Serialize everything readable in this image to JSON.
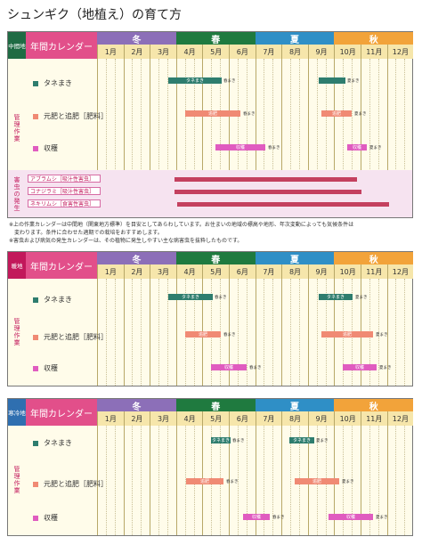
{
  "title": "シュンギク（地植え）の育て方",
  "months": [
    "1月",
    "2月",
    "3月",
    "4月",
    "5月",
    "6月",
    "7月",
    "8月",
    "9月",
    "10月",
    "11月",
    "12月"
  ],
  "seasons": [
    {
      "label": "冬",
      "color": "#8c6fb8"
    },
    {
      "label": "春",
      "color": "#1f7a3f"
    },
    {
      "label": "夏",
      "color": "#2f8fc6"
    },
    {
      "label": "秋",
      "color": "#f2a33a"
    }
  ],
  "colors": {
    "sow": "#2e7d6e",
    "fert": "#f08a74",
    "harvest": "#e05cc0",
    "pest": "#c4405f"
  },
  "calendars": [
    {
      "region": "中間地",
      "region_color": "#1f6b44",
      "annual": "年間カレンダー",
      "management": "管理作業",
      "tasks": [
        {
          "label": "タネまき",
          "key": "sow"
        },
        {
          "label": "元肥と追肥［肥料］",
          "key": "fert"
        },
        {
          "label": "収穫",
          "key": "harvest"
        }
      ],
      "bars": [
        [
          {
            "text": "タネまき",
            "note": "春まき"
          },
          {
            "text": "",
            "note": "夏まき"
          }
        ],
        [
          {
            "text": "追肥",
            "note": "春まき"
          },
          {
            "text": "追肥",
            "note": "夏まき"
          }
        ],
        [
          {
            "text": "収穫",
            "note": "春まき"
          },
          {
            "text": "収穫",
            "note": "夏まき"
          }
        ]
      ],
      "pest_label": "害虫の発生",
      "pests": [
        "アブラムシ［吸汁性害虫］",
        "コナジラミ［吸汁性害虫］",
        "ネキリムシ［食害性害虫］"
      ]
    },
    {
      "region": "暖地",
      "region_color": "#c2185b",
      "annual": "年間カレンダー",
      "management": "管理作業",
      "tasks": [
        {
          "label": "タネまき",
          "key": "sow"
        },
        {
          "label": "元肥と追肥［肥料］",
          "key": "fert"
        },
        {
          "label": "収穫",
          "key": "harvest"
        }
      ],
      "bars": [
        [
          {
            "text": "タネまき",
            "note": "春まき"
          },
          {
            "text": "タネまき",
            "note": "夏まき"
          }
        ],
        [
          {
            "text": "追肥",
            "note": "春まき"
          },
          {
            "text": "追肥",
            "note": "夏まき"
          }
        ],
        [
          {
            "text": "収穫",
            "note": "春まき"
          },
          {
            "text": "収穫",
            "note": "夏まき"
          }
        ]
      ]
    },
    {
      "region": "寒冷地",
      "region_color": "#2f6fb0",
      "annual": "年間カレンダー",
      "management": "管理作業",
      "tasks": [
        {
          "label": "タネまき",
          "key": "sow"
        },
        {
          "label": "元肥と追肥［肥料］",
          "key": "fert"
        },
        {
          "label": "収穫",
          "key": "harvest"
        }
      ],
      "bars": [
        [
          {
            "text": "タネまき",
            "note": "春まき"
          },
          {
            "text": "タネまき",
            "note": "夏まき"
          }
        ],
        [
          {
            "text": "追肥",
            "note": "春まき"
          },
          {
            "text": "追肥",
            "note": "夏まき"
          }
        ],
        [
          {
            "text": "収穫",
            "note": "春まき"
          },
          {
            "text": "収穫",
            "note": "夏まき"
          }
        ]
      ]
    }
  ],
  "footnotes": [
    "※上の作業カレンダーは中間地（関東地方標準）を目安としてあらわしています。お住まいの地域の標高や地形、年次変動によっても気候条件は",
    "　変わります。条件に合わせた適期での栽培をおすすめします。",
    "※害虫および病気の発生カレンダーは、その植物に発生しやすい主な病害虫を抜粋したものです。"
  ]
}
